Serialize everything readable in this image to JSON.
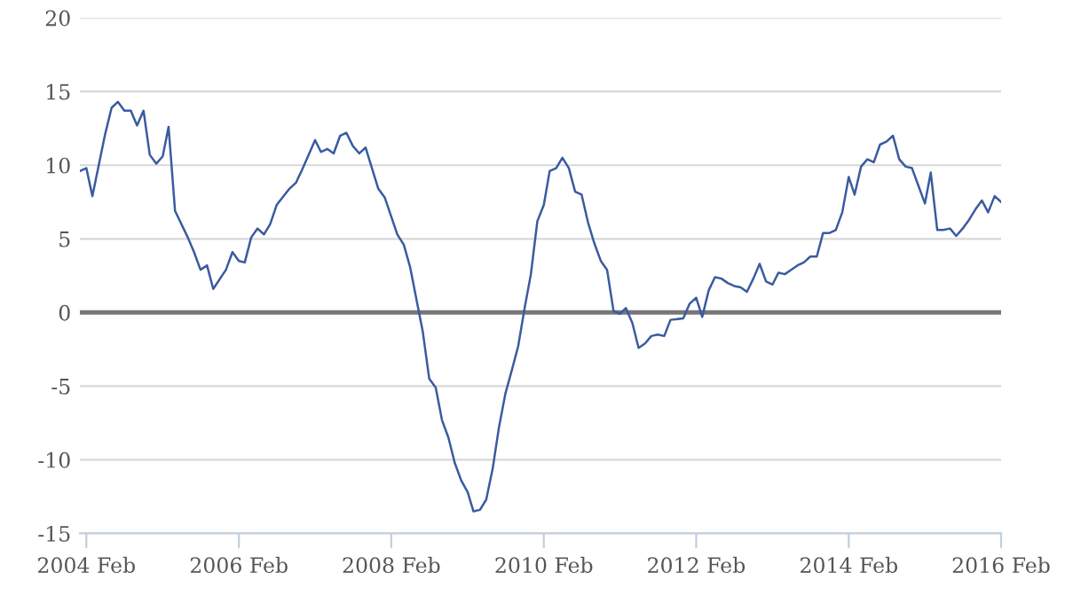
{
  "chart_data": {
    "type": "line",
    "x": [
      "2004-01",
      "2004-02",
      "2004-03",
      "2004-05",
      "2004-06",
      "2004-07",
      "2004-08",
      "2004-09",
      "2004-10",
      "2004-11",
      "2004-12",
      "2005-01",
      "2005-02",
      "2005-03",
      "2005-04",
      "2005-06",
      "2005-07",
      "2005-08",
      "2005-09",
      "2005-10",
      "2005-12",
      "2006-01",
      "2006-02",
      "2006-03",
      "2006-04",
      "2006-05",
      "2006-06",
      "2006-07",
      "2006-08",
      "2006-10",
      "2006-11",
      "2006-12",
      "2007-02",
      "2007-03",
      "2007-04",
      "2007-05",
      "2007-06",
      "2007-07",
      "2007-08",
      "2007-09",
      "2007-10",
      "2007-12",
      "2008-01",
      "2008-03",
      "2008-04",
      "2008-05",
      "2008-07",
      "2008-08",
      "2008-09",
      "2008-10",
      "2008-11",
      "2008-12",
      "2009-01",
      "2009-02",
      "2009-03",
      "2009-04",
      "2009-05",
      "2009-06",
      "2009-07",
      "2009-08",
      "2009-09",
      "2009-10",
      "2009-11",
      "2009-12",
      "2010-01",
      "2010-02",
      "2010-03",
      "2010-04",
      "2010-05",
      "2010-06",
      "2010-07",
      "2010-08",
      "2010-09",
      "2010-10",
      "2010-11",
      "2010-12",
      "2011-01",
      "2011-02",
      "2011-03",
      "2011-04",
      "2011-05",
      "2011-06",
      "2011-07",
      "2011-08",
      "2011-09",
      "2011-10",
      "2011-12",
      "2012-01",
      "2012-02",
      "2012-03",
      "2012-04",
      "2012-05",
      "2012-06",
      "2012-07",
      "2012-08",
      "2012-09",
      "2012-10",
      "2012-11",
      "2012-12",
      "2013-01",
      "2013-02",
      "2013-03",
      "2013-04",
      "2013-05",
      "2013-06",
      "2013-07",
      "2013-08",
      "2013-09",
      "2013-10",
      "2013-11",
      "2013-12",
      "2014-01",
      "2014-02",
      "2014-03",
      "2014-04",
      "2014-05",
      "2014-06",
      "2014-07",
      "2014-08",
      "2014-09",
      "2014-10",
      "2014-11",
      "2014-12",
      "2015-01",
      "2015-02",
      "2015-03",
      "2015-04",
      "2015-05",
      "2015-06",
      "2015-07",
      "2015-08",
      "2015-09",
      "2015-10",
      "2015-11",
      "2015-12",
      "2016-01",
      "2016-02"
    ],
    "series": [
      {
        "color": "#3a5ba0",
        "values": [
          9.6,
          9.8,
          7.9,
          12.1,
          13.9,
          14.3,
          13.7,
          13.7,
          12.7,
          13.7,
          10.7,
          10.1,
          10.6,
          12.6,
          6.9,
          5.1,
          4.1,
          2.9,
          3.2,
          1.6,
          2.9,
          4.1,
          3.5,
          3.4,
          5.1,
          5.7,
          5.3,
          6.0,
          7.3,
          8.4,
          8.8,
          9.7,
          11.7,
          10.9,
          11.1,
          10.8,
          12.0,
          12.2,
          11.3,
          10.8,
          11.2,
          8.4,
          7.8,
          5.3,
          4.6,
          3.1,
          -1.3,
          -4.5,
          -5.1,
          -7.3,
          -8.5,
          -10.2,
          -11.4,
          -12.2,
          -13.5,
          -13.4,
          -12.7,
          -10.6,
          -7.8,
          -5.5,
          -3.9,
          -2.3,
          0.3,
          2.6,
          6.2,
          7.3,
          9.6,
          9.8,
          10.5,
          9.8,
          8.2,
          8.0,
          6.1,
          4.7,
          3.5,
          2.9,
          0.1,
          -0.1,
          0.3,
          -0.7,
          -2.4,
          -2.1,
          -1.6,
          -1.5,
          -1.6,
          -0.5,
          -0.4,
          0.6,
          1.0,
          -0.3,
          1.5,
          2.4,
          2.3,
          2.0,
          1.8,
          1.7,
          1.4,
          2.3,
          3.3,
          2.1,
          1.9,
          2.7,
          2.6,
          2.9,
          3.2,
          3.4,
          3.8,
          3.8,
          5.4,
          5.4,
          5.6,
          6.8,
          9.2,
          8.0,
          9.9,
          10.4,
          10.2,
          11.4,
          11.6,
          12.0,
          10.4,
          9.9,
          9.8,
          8.6,
          7.4,
          9.5,
          5.6,
          5.6,
          5.7,
          5.2,
          5.7,
          6.3,
          7.0,
          7.6,
          6.8,
          7.9,
          7.5
        ]
      }
    ],
    "xlim": [
      "2004-01",
      "2016-02"
    ],
    "xticks": [
      {
        "value": "2004-02",
        "label": "2004 Feb"
      },
      {
        "value": "2006-02",
        "label": "2006 Feb"
      },
      {
        "value": "2008-02",
        "label": "2008 Feb"
      },
      {
        "value": "2010-02",
        "label": "2010 Feb"
      },
      {
        "value": "2012-02",
        "label": "2012 Feb"
      },
      {
        "value": "2014-02",
        "label": "2014 Feb"
      },
      {
        "value": "2016-02",
        "label": "2016 Feb"
      }
    ],
    "ylim": [
      -15,
      20
    ],
    "yticks": [
      -15,
      -10,
      -5,
      0,
      5,
      10,
      15,
      20
    ],
    "grid": "y",
    "ref_lines": [
      {
        "axis": "y",
        "value": 0,
        "color": "#777777"
      }
    ],
    "legend": false,
    "marker": "none",
    "line_style": "solid"
  }
}
